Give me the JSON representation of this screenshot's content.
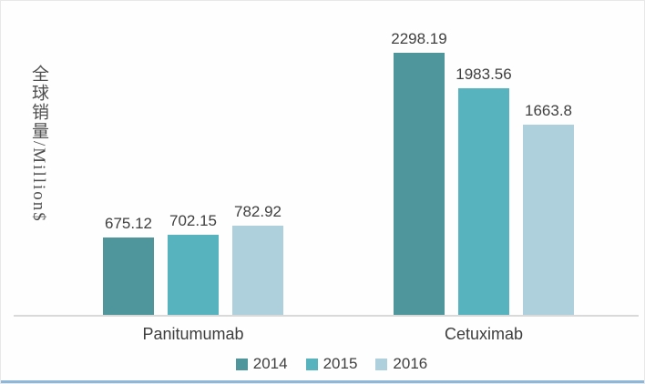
{
  "y_axis": {
    "label": "全球销量/Million$"
  },
  "chart_data": {
    "type": "bar",
    "categories": [
      "Panitumumab",
      "Cetuximab"
    ],
    "series": [
      {
        "name": "2014",
        "color": "#4e969c",
        "values": [
          675.12,
          2298.19
        ]
      },
      {
        "name": "2015",
        "color": "#57b3bd",
        "values": [
          702.15,
          1983.56
        ]
      },
      {
        "name": "2016",
        "color": "#aed0dc",
        "values": [
          782.92,
          1663.8
        ]
      }
    ],
    "title": "",
    "xlabel": "",
    "ylabel": "全球销量/Million$",
    "data_labels_shown": true,
    "grid": false,
    "legend_position": "bottom",
    "ylim": [
      0,
      2400
    ]
  },
  "colors": {
    "axis_line": "#d9d9d9",
    "label_text": "#3f3f3f",
    "bottom_accent": "#8fb7da"
  }
}
